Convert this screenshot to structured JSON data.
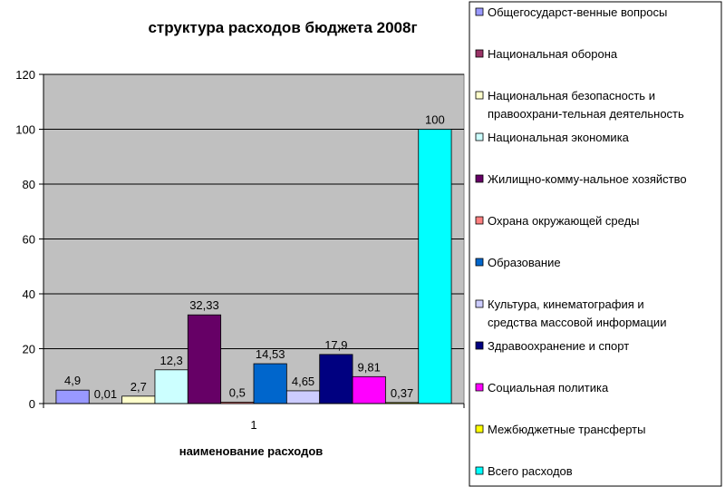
{
  "chart_data": {
    "type": "bar",
    "title": "структура расходов бюджета 2008г",
    "xlabel": "наименование расходов",
    "ylabel": "",
    "categories": [
      "1"
    ],
    "ylim": [
      0,
      120
    ],
    "yticks": [
      0,
      20,
      40,
      60,
      80,
      100,
      120
    ],
    "grid": true,
    "legend_position": "right",
    "plot_background": "#c0c0c0",
    "series": [
      {
        "name": "Общегосударст-венные вопросы",
        "values": [
          4.9
        ],
        "label": "4,9",
        "color": "#9999ff"
      },
      {
        "name": "Национальная оборона",
        "values": [
          0.01
        ],
        "label": "0,01",
        "color": "#993366"
      },
      {
        "name": "Национальная безопасность и правоохрани-тельная деятельность",
        "values": [
          2.7
        ],
        "label": "2,7",
        "color": "#ffffcc"
      },
      {
        "name": "Национальная экономика",
        "values": [
          12.3
        ],
        "label": "12,3",
        "color": "#ccffff"
      },
      {
        "name": "Жилищно-комму-нальное хозяйство",
        "values": [
          32.33
        ],
        "label": "32,33",
        "color": "#660066"
      },
      {
        "name": "Охрана окружающей среды",
        "values": [
          0.5
        ],
        "label": "0,5",
        "color": "#ff8080"
      },
      {
        "name": "Образование",
        "values": [
          14.53
        ],
        "label": "14,53",
        "color": "#0066cc"
      },
      {
        "name": "Культура, кинематография и средства массовой информации",
        "values": [
          4.65
        ],
        "label": "4,65",
        "color": "#ccccff"
      },
      {
        "name": "Здравоохранение и спорт",
        "values": [
          17.9
        ],
        "label": "17,9",
        "color": "#000080"
      },
      {
        "name": "Социальная политика",
        "values": [
          9.81
        ],
        "label": "9,81",
        "color": "#ff00ff"
      },
      {
        "name": "Межбюджетные трансферты",
        "values": [
          0.37
        ],
        "label": "0,37",
        "color": "#ffff00"
      },
      {
        "name": "Всего расходов",
        "values": [
          100
        ],
        "label": "100",
        "color": "#00ffff"
      }
    ]
  }
}
